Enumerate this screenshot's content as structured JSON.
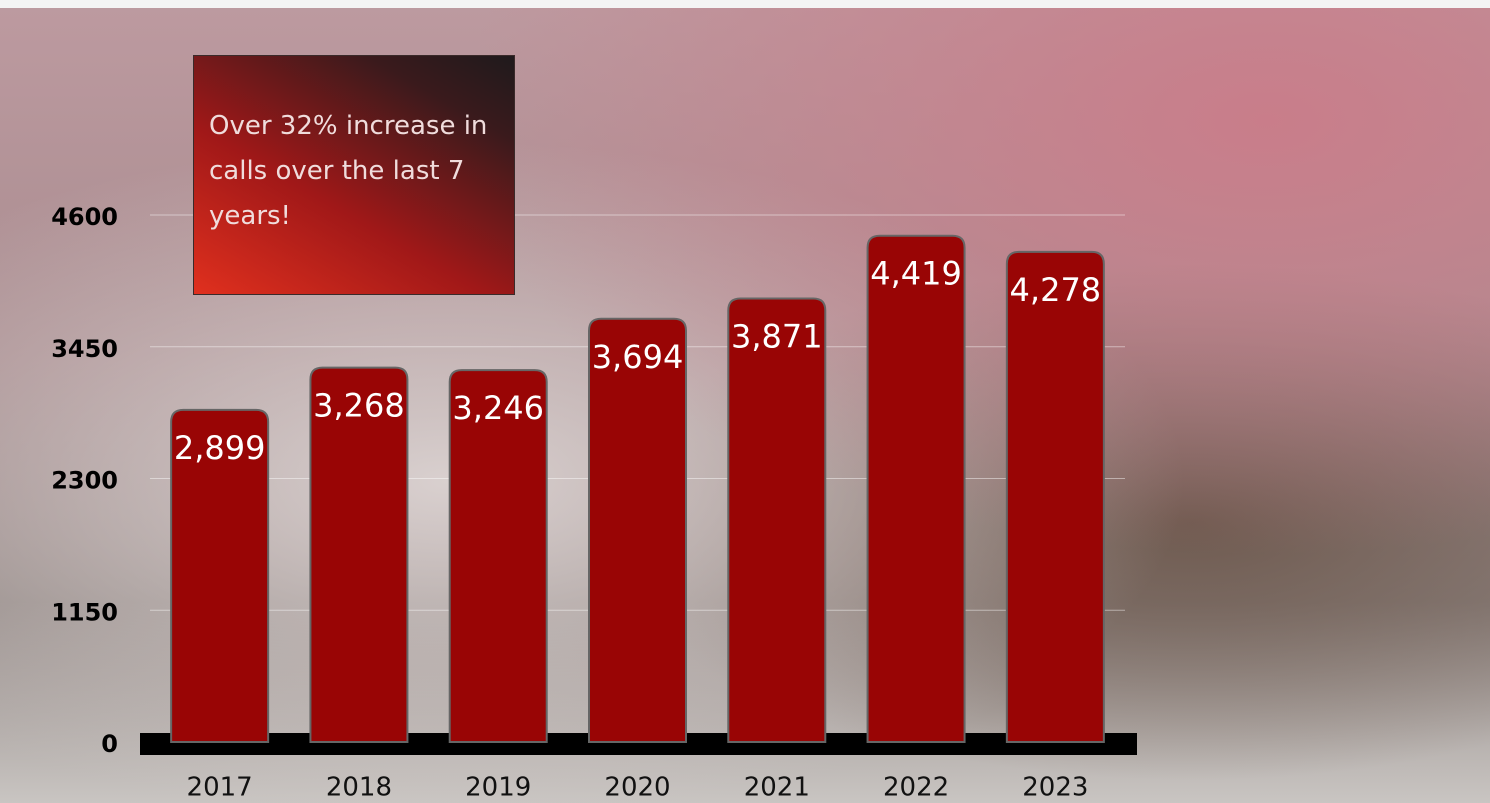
{
  "chart_data": {
    "type": "bar",
    "annotation": "Over 32% increase in calls over the last 7 years!",
    "categories": [
      "2017",
      "2018",
      "2019",
      "2020",
      "2021",
      "2022",
      "2023"
    ],
    "values": [
      2899,
      3268,
      3246,
      3694,
      3871,
      4419,
      4278
    ],
    "value_labels": [
      "2,899",
      "3,268",
      "3,246",
      "3,694",
      "3,871",
      "4,419",
      "4,278"
    ],
    "color": "#990505",
    "ylim": [
      0,
      4600
    ],
    "yticks": [
      0,
      1150,
      2300,
      3450,
      4600
    ],
    "grid": true
  }
}
